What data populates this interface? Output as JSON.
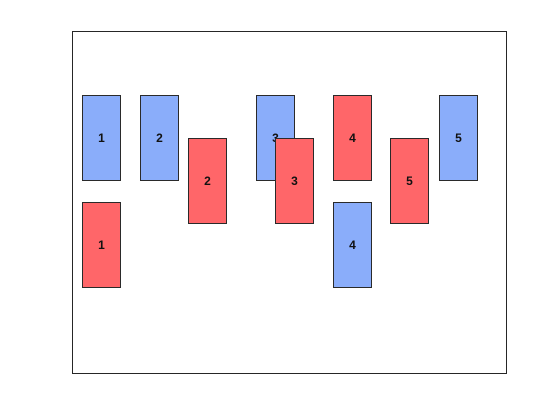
{
  "colors": {
    "blue": "#8aadfa",
    "red": "#ff6669"
  },
  "cards": [
    {
      "label": "1",
      "color": "blue"
    },
    {
      "label": "2",
      "color": "blue"
    },
    {
      "label": "3",
      "color": "blue"
    },
    {
      "label": "4",
      "color": "red"
    },
    {
      "label": "5",
      "color": "blue"
    },
    {
      "label": "1",
      "color": "red"
    },
    {
      "label": "2",
      "color": "red"
    },
    {
      "label": "3",
      "color": "red"
    },
    {
      "label": "4",
      "color": "blue"
    },
    {
      "label": "5",
      "color": "red"
    }
  ]
}
